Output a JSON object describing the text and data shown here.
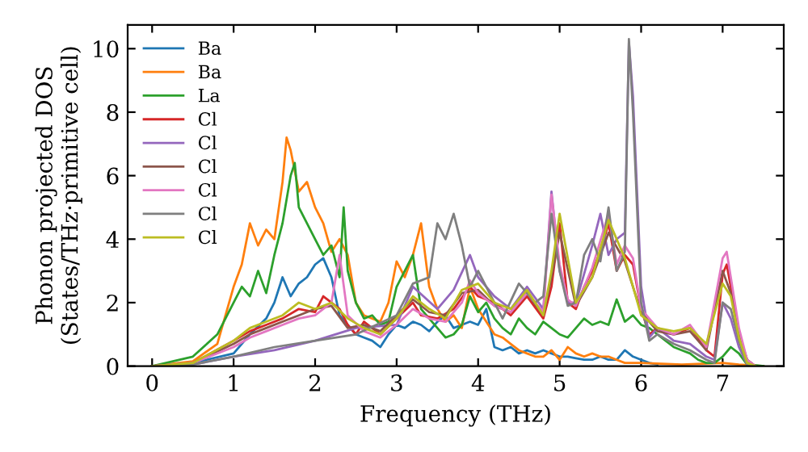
{
  "chart_data": {
    "type": "line",
    "xlabel": "Frequency (THz)",
    "ylabel": "Phonon projected DOS\n(States/THz·primitive cell)",
    "xlim": [
      -0.3,
      7.75
    ],
    "ylim": [
      0,
      10.75
    ],
    "xticks": [
      0,
      1,
      2,
      3,
      4,
      5,
      6,
      7
    ],
    "yticks": [
      0,
      2,
      4,
      6,
      8,
      10
    ],
    "legend": "top left",
    "grid": false,
    "marker": "none",
    "line_style": "solid",
    "series": [
      {
        "name": "Ba",
        "color": "#1f77b4",
        "x": [
          0,
          0.5,
          1,
          1.2,
          1.4,
          1.5,
          1.6,
          1.7,
          1.8,
          1.9,
          2,
          2.1,
          2.2,
          2.3,
          2.4,
          2.5,
          2.6,
          2.7,
          2.8,
          2.9,
          3,
          3.1,
          3.2,
          3.3,
          3.4,
          3.5,
          3.6,
          3.7,
          3.8,
          3.9,
          4,
          4.1,
          4.2,
          4.3,
          4.4,
          4.5,
          4.6,
          4.7,
          4.8,
          4.9,
          5,
          5.1,
          5.2,
          5.3,
          5.4,
          5.5,
          5.6,
          5.7,
          5.8,
          5.9,
          6,
          6.1,
          6.2
        ],
        "values": [
          0,
          0.1,
          0.4,
          1,
          1.5,
          2,
          2.8,
          2.2,
          2.6,
          2.8,
          3.2,
          3.4,
          2.8,
          1.6,
          1.3,
          1,
          0.9,
          0.8,
          0.6,
          1,
          1.3,
          1.2,
          1.4,
          1.3,
          1.1,
          1.4,
          1.6,
          1.2,
          1.3,
          1.4,
          1.3,
          1.8,
          0.6,
          0.5,
          0.6,
          0.4,
          0.5,
          0.4,
          0.5,
          0.4,
          0.3,
          0.3,
          0.25,
          0.2,
          0.2,
          0.3,
          0.2,
          0.2,
          0.5,
          0.3,
          0.2,
          0.1,
          0.05
        ]
      },
      {
        "name": "Ba",
        "color": "#ff7f0e",
        "x": [
          0,
          0.5,
          0.8,
          1,
          1.1,
          1.2,
          1.3,
          1.4,
          1.5,
          1.6,
          1.65,
          1.7,
          1.8,
          1.9,
          2,
          2.1,
          2.2,
          2.3,
          2.4,
          2.5,
          2.6,
          2.7,
          2.8,
          2.9,
          3,
          3.1,
          3.2,
          3.3,
          3.4,
          3.5,
          3.6,
          3.7,
          3.8,
          3.9,
          4,
          4.1,
          4.2,
          4.3,
          4.4,
          4.5,
          4.6,
          4.7,
          4.8,
          4.9,
          5,
          5.1,
          5.2,
          5.3,
          5.4,
          5.5,
          5.6,
          5.7,
          5.8,
          6,
          6.5,
          7,
          7.2,
          7.5
        ],
        "values": [
          0,
          0.15,
          0.7,
          2.5,
          3.2,
          4.5,
          3.8,
          4.3,
          4,
          5.8,
          7.2,
          6.8,
          5.5,
          5.8,
          5,
          4.5,
          3.6,
          4,
          3.5,
          2,
          1.6,
          1.5,
          1.4,
          2,
          3.3,
          2.8,
          3.5,
          4.5,
          2.5,
          1.8,
          1.4,
          1.6,
          1.2,
          2.5,
          1.8,
          1.4,
          1,
          0.9,
          0.7,
          0.5,
          0.4,
          0.3,
          0.3,
          0.5,
          0.2,
          0.6,
          0.4,
          0.3,
          0.4,
          0.3,
          0.3,
          0.2,
          0.1,
          0.1,
          0.05,
          0.1,
          0.05,
          0
        ]
      },
      {
        "name": "La",
        "color": "#2ca02c",
        "x": [
          0,
          0.5,
          0.8,
          1,
          1.1,
          1.2,
          1.3,
          1.4,
          1.5,
          1.6,
          1.7,
          1.75,
          1.8,
          1.9,
          2,
          2.1,
          2.2,
          2.3,
          2.35,
          2.4,
          2.5,
          2.6,
          2.7,
          2.8,
          2.9,
          3,
          3.1,
          3.2,
          3.3,
          3.4,
          3.5,
          3.6,
          3.7,
          3.8,
          3.9,
          4,
          4.1,
          4.2,
          4.3,
          4.4,
          4.5,
          4.6,
          4.7,
          4.8,
          4.9,
          5,
          5.1,
          5.2,
          5.3,
          5.4,
          5.5,
          5.6,
          5.7,
          5.8,
          5.9,
          6,
          6.1,
          6.2,
          6.3,
          6.4,
          6.5,
          6.6,
          6.7,
          6.8,
          6.9,
          7,
          7.1,
          7.2,
          7.3,
          7.5
        ],
        "values": [
          0,
          0.3,
          1,
          2,
          2.5,
          2.2,
          3,
          2.3,
          3.5,
          4.5,
          6,
          6.4,
          5,
          4.5,
          4,
          3.5,
          3.8,
          2.8,
          5,
          3,
          2,
          1.5,
          1.6,
          1.3,
          1.4,
          2.5,
          3,
          3.5,
          1.8,
          1.5,
          1.2,
          0.9,
          1,
          1.3,
          2.2,
          1.7,
          2,
          1.5,
          1.2,
          1,
          1.5,
          1.2,
          1,
          1.4,
          1.2,
          1,
          0.9,
          1.2,
          1.5,
          1.3,
          1.4,
          1.3,
          2.1,
          1.4,
          1.6,
          1.3,
          1.2,
          1,
          0.8,
          0.6,
          0.5,
          0.4,
          0.2,
          0.1,
          0.1,
          0.3,
          0.6,
          0.4,
          0.05,
          0
        ]
      },
      {
        "name": "Cl",
        "color": "#d62728",
        "x": [
          0,
          0.5,
          1,
          1.2,
          1.4,
          1.6,
          1.8,
          2,
          2.1,
          2.2,
          2.3,
          2.4,
          2.5,
          2.6,
          2.8,
          3,
          3.2,
          3.3,
          3.5,
          3.7,
          3.9,
          4,
          4.2,
          4.4,
          4.6,
          4.8,
          4.9,
          5,
          5.1,
          5.2,
          5.3,
          5.4,
          5.5,
          5.6,
          5.7,
          5.8,
          5.9,
          6,
          6.1,
          6.2,
          6.4,
          6.6,
          6.7,
          6.8,
          6.9,
          7,
          7.05,
          7.1,
          7.2,
          7.3,
          7.4
        ],
        "values": [
          0,
          0.1,
          0.8,
          1.1,
          1.3,
          1.5,
          1.8,
          1.7,
          2.2,
          2,
          1.8,
          1.3,
          1,
          1.4,
          1,
          1.5,
          2,
          1.6,
          1.5,
          1.8,
          2.5,
          2.2,
          2,
          1.6,
          2.2,
          1.5,
          2.5,
          4.5,
          2,
          1.8,
          2.5,
          3,
          3.6,
          4.5,
          3,
          3.5,
          3.2,
          1.8,
          1,
          1.2,
          1,
          1.2,
          0.9,
          0.5,
          0.3,
          2.9,
          3.2,
          2.5,
          1,
          0.2,
          0
        ]
      },
      {
        "name": "Cl",
        "color": "#9467bd",
        "x": [
          0,
          0.5,
          1,
          1.5,
          2,
          2.5,
          3,
          3.2,
          3.5,
          3.7,
          3.9,
          4,
          4.2,
          4.4,
          4.6,
          4.8,
          4.9,
          5,
          5.1,
          5.2,
          5.4,
          5.5,
          5.6,
          5.7,
          5.8,
          5.85,
          5.9,
          6,
          6.1,
          6.2,
          6.4,
          6.6,
          6.8,
          6.9,
          7,
          7.1,
          7.2,
          7.3,
          7.4
        ],
        "values": [
          0,
          0.05,
          0.3,
          0.5,
          0.8,
          1.2,
          1.3,
          2.5,
          1.8,
          2.4,
          3.5,
          2.8,
          2.2,
          1.8,
          2.5,
          1.8,
          5.5,
          3,
          2,
          2,
          3.8,
          4.8,
          3.5,
          4,
          4.2,
          10.2,
          8.5,
          2.5,
          0.9,
          1.2,
          0.8,
          0.7,
          0.3,
          0.2,
          2,
          1.5,
          0.6,
          0.05,
          0
        ]
      },
      {
        "name": "Cl",
        "color": "#8c564b",
        "x": [
          0,
          0.5,
          1,
          1.2,
          1.4,
          1.6,
          1.8,
          2,
          2.2,
          2.4,
          2.6,
          2.8,
          3,
          3.2,
          3.4,
          3.6,
          3.8,
          4,
          4.2,
          4.4,
          4.6,
          4.8,
          4.9,
          5,
          5.2,
          5.4,
          5.6,
          5.8,
          6,
          6.2,
          6.4,
          6.6,
          6.8,
          7,
          7.1,
          7.2,
          7.3,
          7.4
        ],
        "values": [
          0,
          0.1,
          0.7,
          1,
          1.2,
          1.4,
          1.6,
          1.8,
          1.9,
          1.2,
          1.3,
          1.1,
          1.6,
          2.1,
          1.7,
          1.6,
          2.3,
          2.4,
          1.9,
          1.7,
          2.3,
          1.6,
          2.8,
          4.2,
          1.9,
          2.8,
          4.2,
          3.3,
          1.7,
          1.1,
          1,
          1.1,
          0.5,
          3,
          2.3,
          1,
          0.2,
          0
        ]
      },
      {
        "name": "Cl",
        "color": "#e377c2",
        "x": [
          0,
          0.5,
          1,
          1.2,
          1.4,
          1.6,
          1.8,
          2,
          2.2,
          2.3,
          2.4,
          2.6,
          2.8,
          3,
          3.2,
          3.4,
          3.6,
          3.8,
          3.9,
          4,
          4.2,
          4.4,
          4.6,
          4.8,
          4.9,
          5,
          5.1,
          5.2,
          5.4,
          5.6,
          5.7,
          5.8,
          5.9,
          6,
          6.2,
          6.4,
          6.6,
          6.8,
          7,
          7.05,
          7.1,
          7.2,
          7.3,
          7.4
        ],
        "values": [
          0,
          0.1,
          0.6,
          0.9,
          1.1,
          1.3,
          1.5,
          1.6,
          2,
          3.5,
          1.6,
          1.1,
          0.9,
          1.3,
          1.8,
          1.5,
          1.4,
          2,
          2.7,
          2.3,
          1.9,
          1.7,
          2.3,
          1.7,
          5.4,
          3.2,
          2.1,
          1.9,
          3.1,
          4.8,
          3.2,
          3.8,
          3.4,
          1.8,
          1.2,
          1,
          1.3,
          0.6,
          3.4,
          3.6,
          2.8,
          1.2,
          0.2,
          0
        ]
      },
      {
        "name": "Cl",
        "color": "#7f7f7f",
        "x": [
          0,
          0.5,
          1,
          1.5,
          2,
          2.5,
          3,
          3.2,
          3.4,
          3.5,
          3.6,
          3.7,
          3.8,
          3.9,
          4,
          4.1,
          4.3,
          4.5,
          4.7,
          4.8,
          4.9,
          5,
          5.1,
          5.2,
          5.3,
          5.4,
          5.5,
          5.6,
          5.7,
          5.8,
          5.85,
          5.9,
          6,
          6.1,
          6.2,
          6.4,
          6.6,
          6.8,
          6.9,
          7,
          7.1,
          7.2,
          7.3,
          7.4
        ],
        "values": [
          0,
          0.05,
          0.3,
          0.6,
          0.8,
          1,
          1.6,
          2.6,
          2.8,
          4.5,
          4,
          4.8,
          3.8,
          2.5,
          3,
          2.5,
          1.5,
          2.6,
          2,
          2.2,
          4.8,
          3,
          1.9,
          2,
          3.5,
          4,
          3.3,
          5,
          3,
          3.6,
          10.3,
          8,
          2,
          0.8,
          1,
          0.7,
          0.5,
          0.2,
          0.1,
          2,
          1.8,
          0.8,
          0.05,
          0
        ]
      },
      {
        "name": "Cl",
        "color": "#bcbd22",
        "x": [
          0,
          0.5,
          1,
          1.2,
          1.4,
          1.6,
          1.8,
          2,
          2.2,
          2.4,
          2.6,
          2.8,
          3,
          3.2,
          3.4,
          3.6,
          3.8,
          4,
          4.2,
          4.4,
          4.6,
          4.8,
          4.9,
          5,
          5.2,
          5.4,
          5.6,
          5.8,
          6,
          6.2,
          6.4,
          6.6,
          6.8,
          7,
          7.1,
          7.2,
          7.3,
          7.4
        ],
        "values": [
          0,
          0.1,
          0.8,
          1.2,
          1.4,
          1.6,
          2,
          1.8,
          2,
          1.5,
          1.2,
          1,
          1.5,
          2.2,
          1.8,
          1.5,
          2.4,
          2.6,
          2,
          1.8,
          2.4,
          1.6,
          3,
          4.8,
          2,
          2.8,
          4.6,
          3.4,
          1.6,
          1.2,
          1.1,
          1.2,
          0.7,
          2.6,
          2.2,
          0.9,
          0.1,
          0
        ]
      }
    ]
  }
}
